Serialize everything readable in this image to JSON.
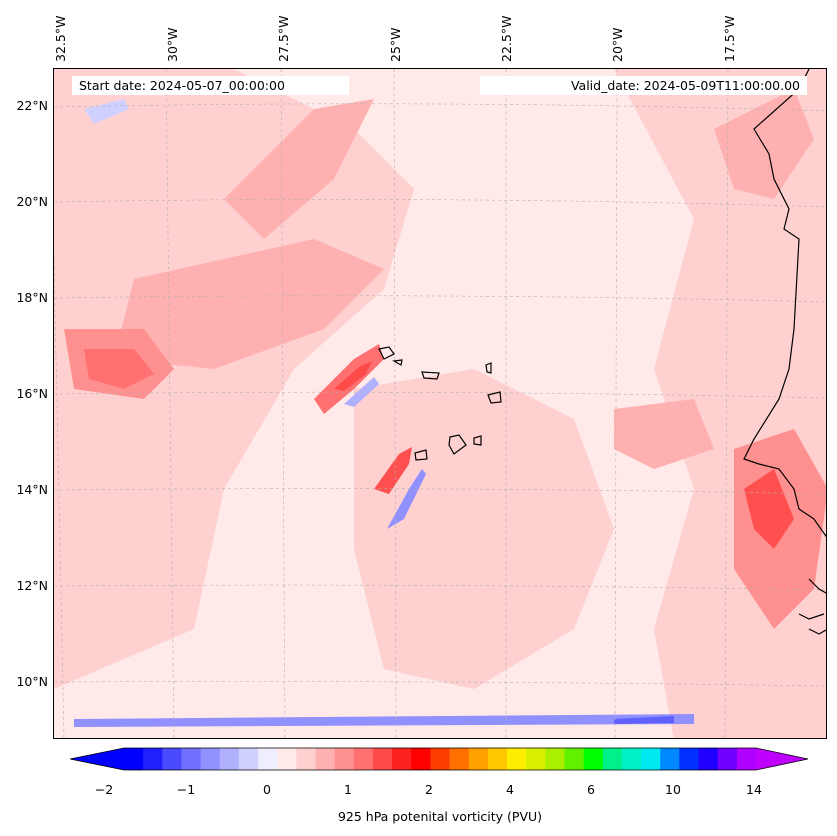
{
  "map": {
    "start_date": "Start date: 2024-05-07_00:00:00",
    "valid_date": "Valid_date: 2024-05-09T11:00:00.00",
    "lon_labels": [
      "32.5°W",
      "30°W",
      "27.5°W",
      "25°W",
      "22.5°W",
      "20°W",
      "17.5°W"
    ],
    "lat_labels": [
      "22°N",
      "20°N",
      "18°N",
      "16°N",
      "14°N",
      "12°N",
      "10°N"
    ]
  },
  "colorbar": {
    "label": "925 hPa potenital vorticity (PVU)",
    "tick_labels": [
      "−2",
      "−1",
      "0",
      "1",
      "2",
      "4",
      "6",
      "10",
      "14"
    ],
    "colors": [
      "#0000ff",
      "#2020ff",
      "#4a4aff",
      "#7070ff",
      "#9090ff",
      "#b0b0ff",
      "#d0d0ff",
      "#eeeeff",
      "#ffe9e9",
      "#ffd0d0",
      "#ffb0b0",
      "#ff9090",
      "#ff7070",
      "#ff4a4a",
      "#ff2020",
      "#ff0000",
      "#ff3c00",
      "#ff7000",
      "#ffa000",
      "#ffc800",
      "#ffee00",
      "#d8f000",
      "#a8f000",
      "#60f000",
      "#00ff00",
      "#00f08a",
      "#00f0c8",
      "#00e8f0",
      "#0088ff",
      "#0030ff",
      "#2000ff",
      "#7000ff",
      "#b000ff"
    ],
    "under_color": "#0000ff",
    "over_color": "#c000ff"
  }
}
